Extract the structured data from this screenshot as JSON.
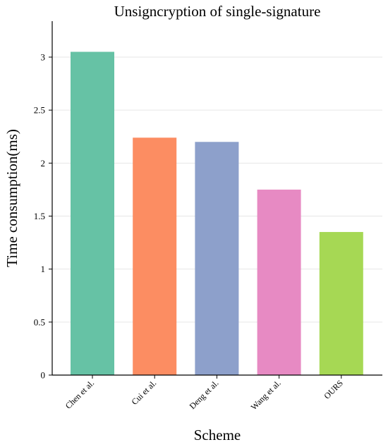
{
  "chart_data": {
    "type": "bar",
    "title": "Unsigncryption of single-signature",
    "xlabel": "Scheme",
    "ylabel": "Time consumption(ms)",
    "categories": [
      "Chen et al.",
      "Cui et al.",
      "Deng et al.",
      "Wang et al.",
      "OURS"
    ],
    "values": [
      3.05,
      2.24,
      2.2,
      1.75,
      1.35
    ],
    "colors": [
      "#66c2a5",
      "#fc8d62",
      "#8da0cb",
      "#e78ac3",
      "#a6d854"
    ],
    "ylim": [
      0,
      3.35
    ],
    "yticks": [
      0,
      0.5,
      1,
      1.5,
      2,
      2.5,
      3
    ],
    "ytick_labels": [
      "0",
      "0.5",
      "1",
      "1.5",
      "2",
      "2.5",
      "3"
    ],
    "grid": true
  }
}
